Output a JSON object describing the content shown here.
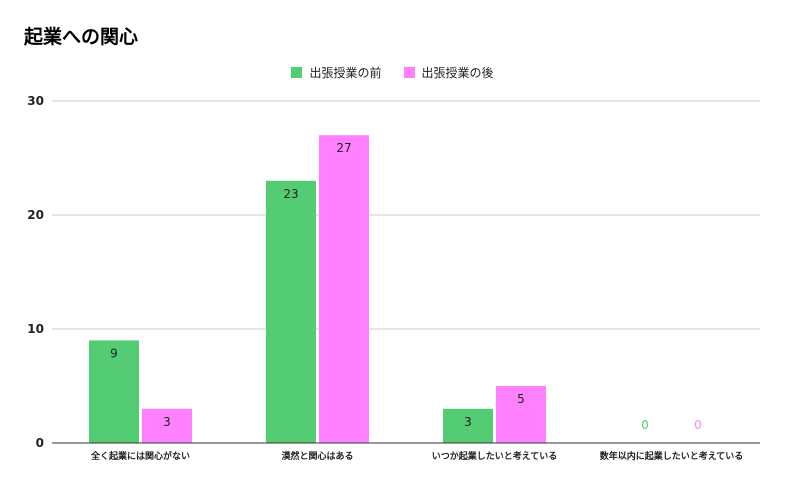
{
  "chart_data": {
    "type": "bar",
    "title": "起業への関心",
    "categories": [
      "全く起業には関心がない",
      "漠然と関心はある",
      "いつか起業したいと考えている",
      "数年以内に起業したいと考えている"
    ],
    "series": [
      {
        "name": "出張授業の前",
        "color": "#54cc73",
        "values": [
          9,
          23,
          3,
          0
        ]
      },
      {
        "name": "出張授業の後",
        "color": "#ff80ff",
        "values": [
          3,
          27,
          5,
          0
        ]
      }
    ],
    "ylim": [
      0,
      30
    ],
    "yticks": [
      0,
      10,
      20,
      30
    ],
    "grid": true,
    "legend_position": "top-center",
    "data_labels": true
  }
}
